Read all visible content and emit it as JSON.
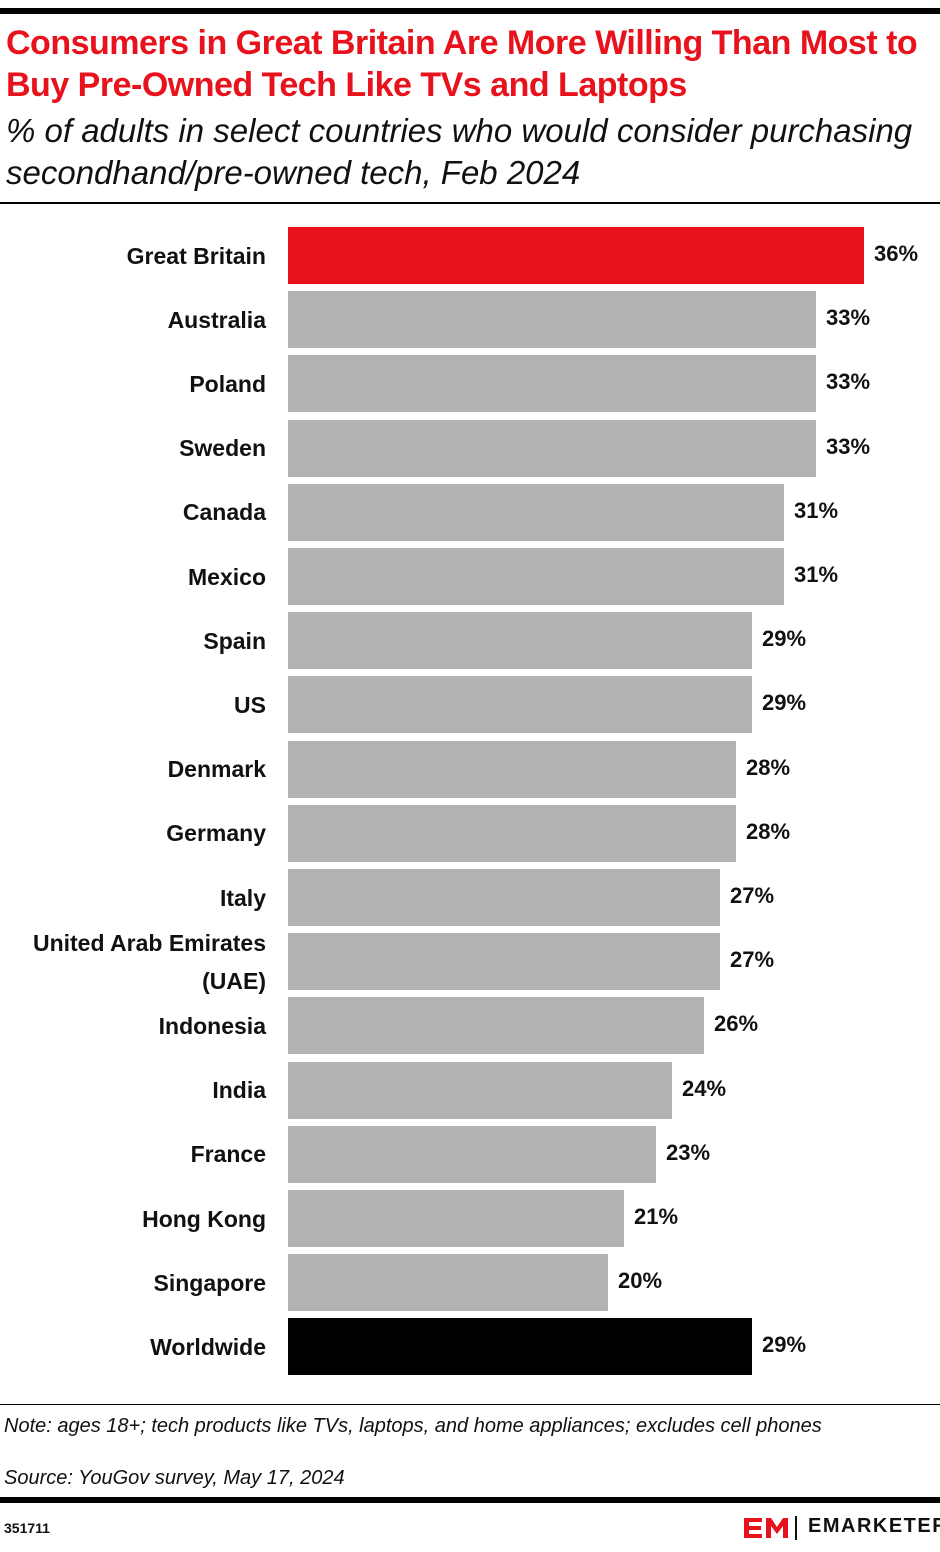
{
  "chart_data": {
    "type": "bar",
    "title": "Consumers in Great Britain Are More Willing Than Most to Buy Pre-Owned Tech Like TVs and Laptops",
    "subtitle": "% of adults in select countries who would consider purchasing secondhand/pre-owned tech, Feb 2024",
    "categories": [
      "Great Britain",
      "Australia",
      "Poland",
      "Sweden",
      "Canada",
      "Mexico",
      "Spain",
      "US",
      "Denmark",
      "Germany",
      "Italy",
      "United Arab Emirates (UAE)",
      "Indonesia",
      "India",
      "France",
      "Hong Kong",
      "Singapore",
      "Worldwide"
    ],
    "values": [
      36,
      33,
      33,
      33,
      31,
      31,
      29,
      29,
      28,
      28,
      27,
      27,
      26,
      24,
      23,
      21,
      20,
      29
    ],
    "value_labels": [
      "36%",
      "33%",
      "33%",
      "33%",
      "31%",
      "31%",
      "29%",
      "29%",
      "28%",
      "28%",
      "27%",
      "27%",
      "26%",
      "24%",
      "23%",
      "21%",
      "20%",
      "29%"
    ],
    "colors": [
      "#e8121c",
      "#b3b3b3",
      "#b3b3b3",
      "#b3b3b3",
      "#b3b3b3",
      "#b3b3b3",
      "#b3b3b3",
      "#b3b3b3",
      "#b3b3b3",
      "#b3b3b3",
      "#b3b3b3",
      "#b3b3b3",
      "#b3b3b3",
      "#b3b3b3",
      "#b3b3b3",
      "#b3b3b3",
      "#b3b3b3",
      "#000000"
    ],
    "note": "Note: ages 18+; tech products like TVs, laptops, and home appliances; excludes cell phones",
    "source": "Source: YouGov survey, May 17, 2024",
    "chart_id": "351711",
    "brand": "EMARKETER"
  }
}
